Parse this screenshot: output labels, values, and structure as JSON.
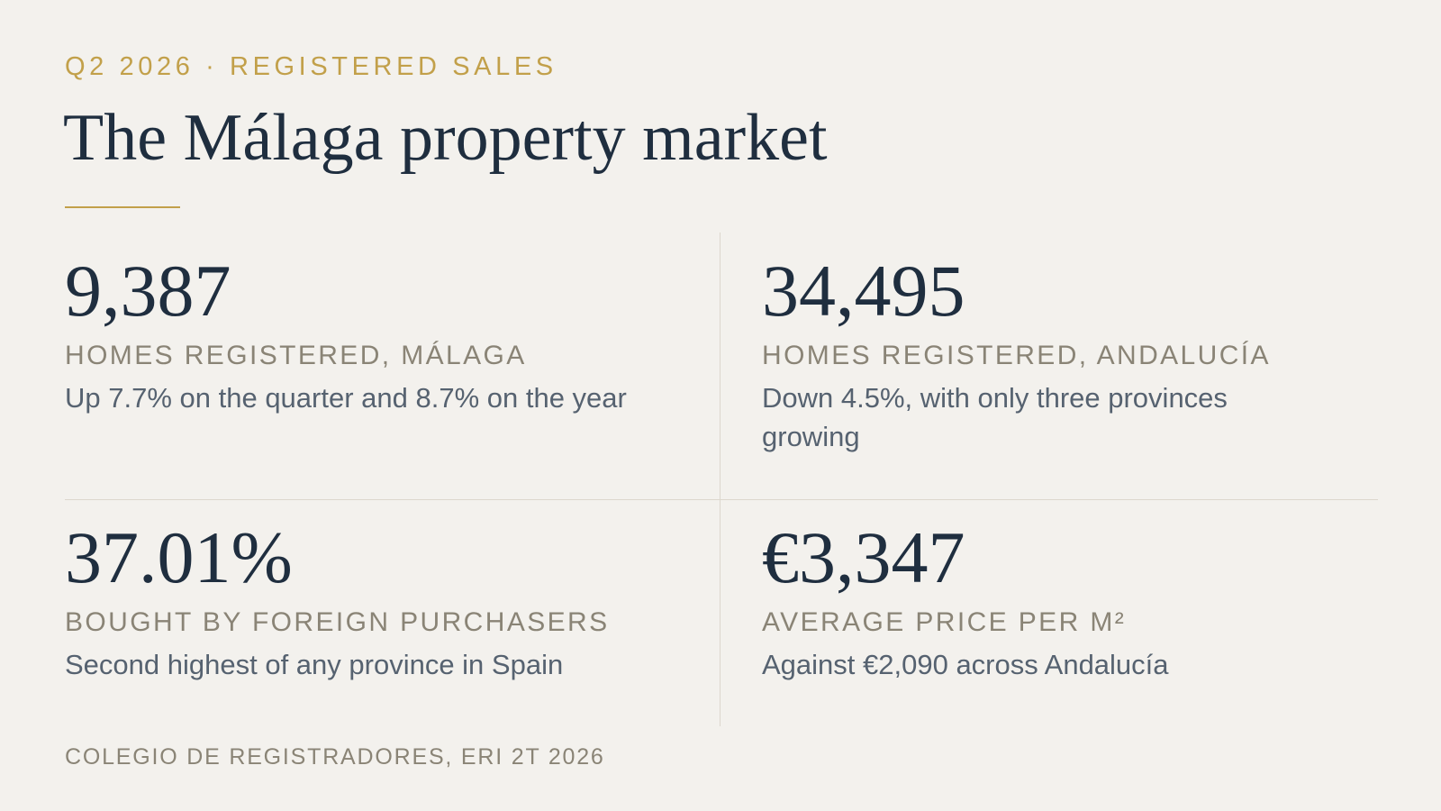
{
  "header": {
    "eyebrow": "Q2 2026 · REGISTERED SALES",
    "title": "The Málaga property market"
  },
  "stats": [
    {
      "value": "9,387",
      "label": "HOMES REGISTERED, MÁLAGA",
      "description": "Up 7.7% on the quarter and 8.7% on the year"
    },
    {
      "value": "34,495",
      "label": "HOMES REGISTERED, ANDALUCÍA",
      "description": "Down 4.5%, with only three provinces growing"
    },
    {
      "value": "37.01%",
      "label": "BOUGHT BY FOREIGN PURCHASERS",
      "description": "Second highest of any province in Spain"
    },
    {
      "value": "€3,347",
      "label": "AVERAGE PRICE PER M²",
      "description": "Against €2,090 across Andalucía"
    }
  ],
  "footer": {
    "source": "COLEGIO DE REGISTRADORES, ERI 2T 2026"
  },
  "colors": {
    "background": "#f3f1ed",
    "accent": "#c2a04a",
    "heading": "#1f2e3f",
    "label": "#8a8476",
    "body": "#566270",
    "divider": "#dcd7cd"
  }
}
